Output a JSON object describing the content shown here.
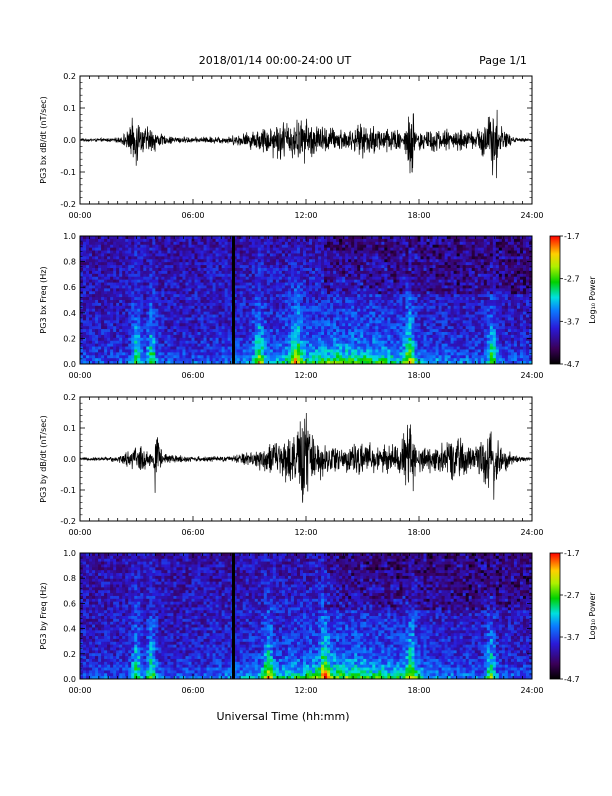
{
  "header": {
    "title": "2018/01/14  00:00-24:00 UT",
    "page": "Page 1/1"
  },
  "xaxis": {
    "title": "Universal Time (hh:mm)",
    "ticks": [
      "00:00",
      "06:00",
      "12:00",
      "18:00",
      "24:00"
    ],
    "range_hours": [
      0,
      24
    ]
  },
  "colorbar": {
    "label": "Log₁₀ Power",
    "ticks": [
      "-1.7",
      "-2.7",
      "-3.7",
      "-4.7"
    ],
    "range": [
      -4.7,
      -1.7
    ],
    "colormap": "rainbow (black-purple-blue-cyan-green-yellow-red)"
  },
  "chart_data": [
    {
      "type": "line",
      "ylabel": "PG3 bx dB/dt (nT/sec)",
      "ylim": [
        -0.2,
        0.2
      ],
      "yticks": [
        "0.2",
        "0.1",
        "0.0",
        "-0.1",
        "-0.2"
      ],
      "x_hours": [
        0,
        2.0,
        2.5,
        3.05,
        3.1,
        3.2,
        3.8,
        4.5,
        6.0,
        8.0,
        9.5,
        10.5,
        11.0,
        12.0,
        12.5,
        13.0,
        14.5,
        15.0,
        16.0,
        17.0,
        17.6,
        18.0,
        19.0,
        20.0,
        21.0,
        21.6,
        22.0,
        22.1,
        22.3,
        23.0,
        24.0
      ],
      "amplitude": [
        0.004,
        0.008,
        0.03,
        0.11,
        -0.14,
        0.05,
        0.05,
        0.015,
        0.01,
        0.015,
        0.04,
        0.07,
        0.07,
        0.08,
        0.06,
        0.05,
        0.04,
        0.06,
        0.05,
        0.05,
        -0.17,
        0.05,
        0.04,
        0.04,
        0.03,
        0.1,
        0.13,
        -0.21,
        0.06,
        0.01,
        0.005
      ]
    },
    {
      "type": "heatmap",
      "ylabel": "PG3 bx Freq (Hz)",
      "ylim": [
        0.0,
        1.0
      ],
      "yticks": [
        "1.0",
        "0.8",
        "0.6",
        "0.4",
        "0.2",
        "0.0"
      ],
      "bright_bursts_hours": [
        3.0,
        3.8,
        9.5,
        11.5,
        17.5,
        21.9
      ],
      "data_gap_hour": 8.15
    },
    {
      "type": "line",
      "ylabel": "PG3 by dB/dt (nT/sec)",
      "ylim": [
        -0.2,
        0.2
      ],
      "yticks": [
        "0.2",
        "0.1",
        "0.0",
        "-0.1",
        "-0.2"
      ],
      "x_hours": [
        0,
        2.0,
        2.5,
        3.0,
        3.8,
        4.0,
        4.5,
        6.0,
        8.0,
        9.5,
        10.5,
        11.5,
        11.9,
        12.5,
        13.0,
        14.0,
        15.0,
        16.0,
        17.0,
        17.55,
        17.65,
        18.0,
        19.0,
        20.0,
        21.0,
        21.8,
        22.0,
        22.1,
        23.0,
        24.0
      ],
      "amplitude": [
        0.004,
        0.01,
        0.03,
        0.05,
        0.04,
        -0.16,
        0.02,
        0.01,
        0.01,
        0.04,
        0.07,
        0.1,
        0.2,
        0.08,
        0.06,
        0.05,
        0.06,
        0.05,
        0.06,
        0.2,
        -0.17,
        0.05,
        0.05,
        0.08,
        0.04,
        0.15,
        -0.19,
        0.08,
        0.015,
        0.006
      ]
    },
    {
      "type": "heatmap",
      "ylabel": "PG3 by Freq (Hz)",
      "ylim": [
        0.0,
        1.0
      ],
      "yticks": [
        "1.0",
        "0.8",
        "0.6",
        "0.4",
        "0.2",
        "0.0"
      ],
      "bright_bursts_hours": [
        3.0,
        3.8,
        10.0,
        13.0,
        17.6,
        21.8
      ],
      "data_gap_hour": 8.15
    }
  ]
}
